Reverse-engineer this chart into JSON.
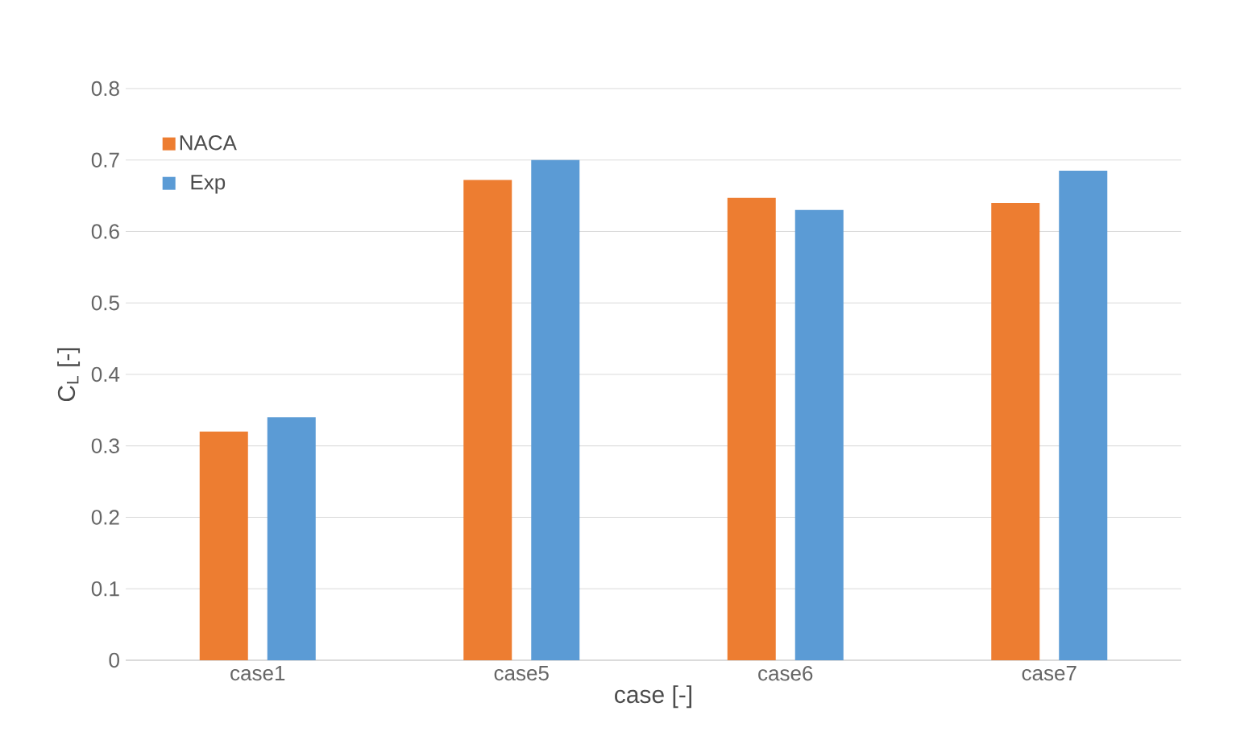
{
  "chart_data": {
    "type": "bar",
    "xlabel": "case [-]",
    "ylabel": "C$_{L}$ [-]",
    "categories": [
      "case1",
      "case5",
      "case6",
      "case7"
    ],
    "series": [
      {
        "name": "NACA",
        "color": "#ed7d31",
        "values": [
          0.32,
          0.672,
          0.647,
          0.64
        ]
      },
      {
        "name": "Exp",
        "color": "#5b9bd5",
        "values": [
          0.34,
          0.7,
          0.63,
          0.685
        ]
      }
    ],
    "ylim": [
      0,
      0.8
    ],
    "yticks": [
      0,
      0.1,
      0.2,
      0.3,
      0.4,
      0.5,
      0.6,
      0.7,
      0.8
    ],
    "grid": "y",
    "legend": "top left"
  }
}
